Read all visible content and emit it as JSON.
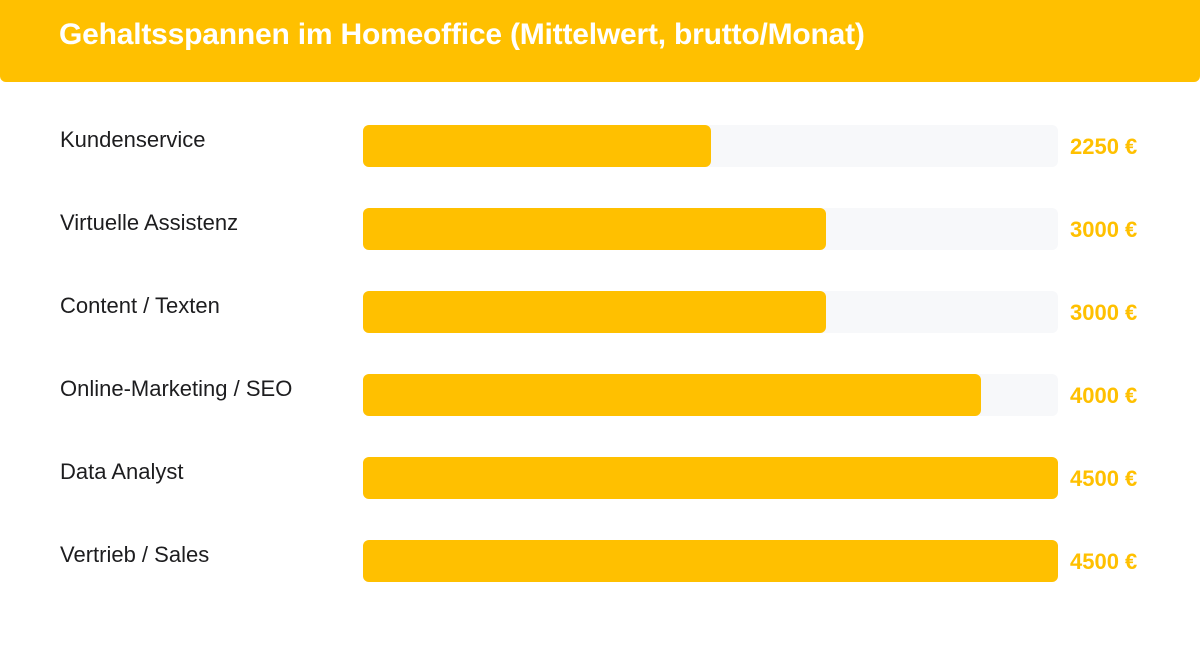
{
  "header": {
    "title": "Gehaltsspannen im Homeoffice (Mittelwert, brutto/Monat)"
  },
  "colors": {
    "accent": "#FFC000",
    "track": "#F7F8FA",
    "label_text": "#1D1D1F",
    "title_text": "#FFFFFF"
  },
  "chart_data": {
    "type": "bar",
    "orientation": "horizontal",
    "title": "Gehaltsspannen im Homeoffice (Mittelwert, brutto/Monat)",
    "categories": [
      "Kundenservice",
      "Virtuelle Assistenz",
      "Content / Texten",
      "Online-Marketing / SEO",
      "Data Analyst",
      "Vertrieb / Sales"
    ],
    "values": [
      2250,
      3000,
      3000,
      4000,
      4500,
      4500
    ],
    "value_labels": [
      "2250 €",
      "3000 €",
      "3000 €",
      "4000 €",
      "4500 €",
      "4500 €"
    ],
    "unit": "€",
    "xlim": [
      0,
      4500
    ],
    "grid": false,
    "legend": "none"
  }
}
